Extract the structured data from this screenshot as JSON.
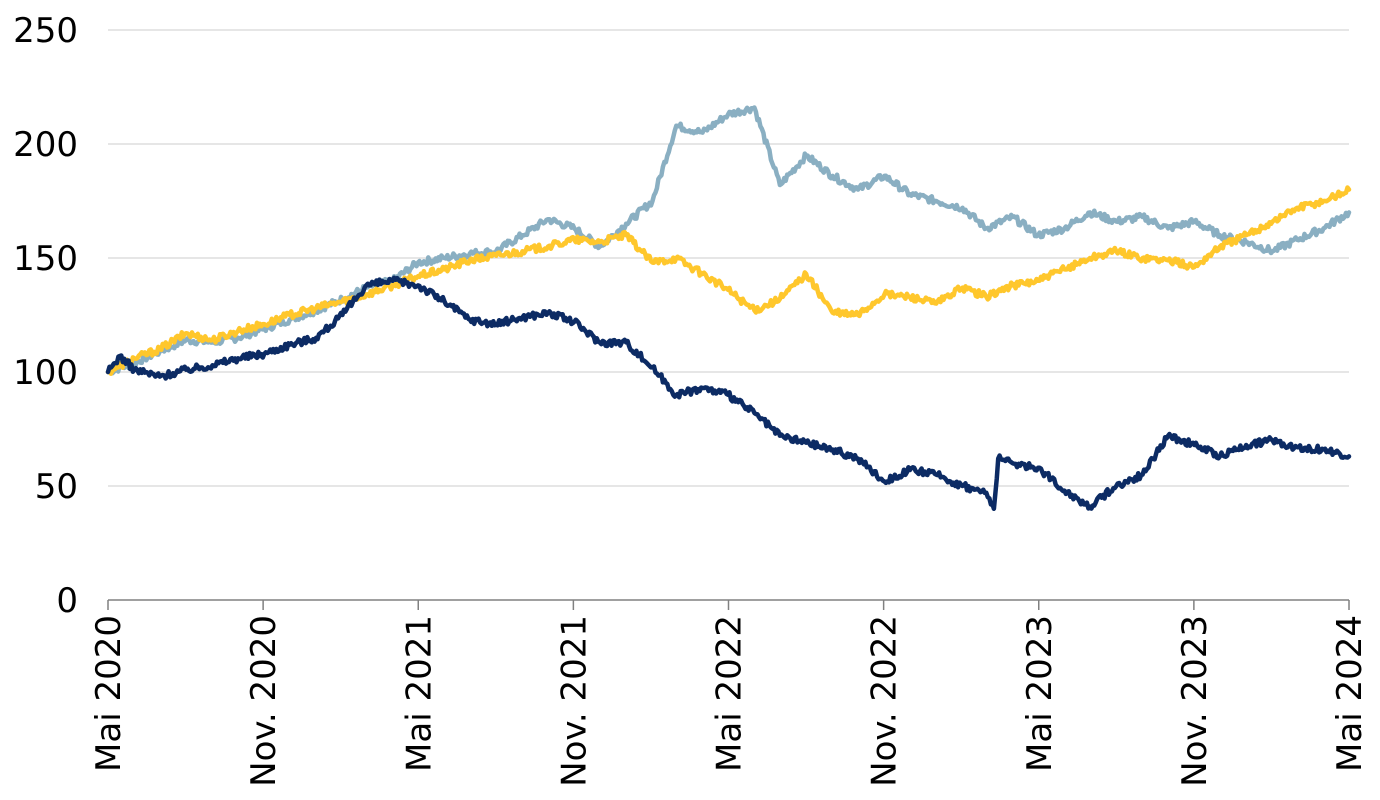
{
  "chart_data": {
    "type": "line",
    "title": "",
    "xlabel": "",
    "ylabel": "",
    "ylim": [
      0,
      250
    ],
    "xlim": [
      "2020-05",
      "2024-05"
    ],
    "yticks": [
      "0",
      "50",
      "100",
      "150",
      "200",
      "250"
    ],
    "xticks": [
      "Mai 2020",
      "Nov. 2020",
      "Mai 2021",
      "Nov. 2021",
      "Mai 2022",
      "Nov. 2022",
      "Mai 2023",
      "Nov. 2023",
      "Mai 2024"
    ],
    "grid": true,
    "legend": "none",
    "series": [
      {
        "color": "#8AAFC2",
        "points": [
          [
            "2020-05-01",
            100
          ],
          [
            "2020-06-01",
            104
          ],
          [
            "2020-07-01",
            109
          ],
          [
            "2020-08-01",
            114
          ],
          [
            "2020-09-01",
            113
          ],
          [
            "2020-10-01",
            115
          ],
          [
            "2020-11-01",
            119
          ],
          [
            "2020-12-01",
            123
          ],
          [
            "2021-01-01",
            127
          ],
          [
            "2021-02-01",
            132
          ],
          [
            "2021-03-01",
            137
          ],
          [
            "2021-04-01",
            140
          ],
          [
            "2021-05-01",
            148
          ],
          [
            "2021-06-01",
            150
          ],
          [
            "2021-07-01",
            152
          ],
          [
            "2021-08-01",
            153
          ],
          [
            "2021-09-01",
            160
          ],
          [
            "2021-10-01",
            167
          ],
          [
            "2021-11-01",
            163
          ],
          [
            "2021-12-01",
            155
          ],
          [
            "2022-01-01",
            165
          ],
          [
            "2022-02-01",
            175
          ],
          [
            "2022-03-01",
            208
          ],
          [
            "2022-04-01",
            205
          ],
          [
            "2022-05-01",
            213
          ],
          [
            "2022-06-01",
            216
          ],
          [
            "2022-07-01",
            182
          ],
          [
            "2022-08-01",
            195
          ],
          [
            "2022-09-01",
            186
          ],
          [
            "2022-10-01",
            180
          ],
          [
            "2022-11-01",
            186
          ],
          [
            "2022-12-01",
            178
          ],
          [
            "2023-01-01",
            175
          ],
          [
            "2023-02-01",
            172
          ],
          [
            "2023-03-01",
            163
          ],
          [
            "2023-04-01",
            168
          ],
          [
            "2023-05-01",
            160
          ],
          [
            "2023-06-01",
            163
          ],
          [
            "2023-07-01",
            170
          ],
          [
            "2023-08-01",
            166
          ],
          [
            "2023-09-01",
            168
          ],
          [
            "2023-10-01",
            163
          ],
          [
            "2023-11-01",
            166
          ],
          [
            "2023-12-01",
            160
          ],
          [
            "2024-01-01",
            157
          ],
          [
            "2024-02-01",
            153
          ],
          [
            "2024-03-01",
            158
          ],
          [
            "2024-04-01",
            163
          ],
          [
            "2024-05-01",
            170
          ]
        ]
      },
      {
        "color": "#FFC72C",
        "points": [
          [
            "2020-05-01",
            100
          ],
          [
            "2020-06-01",
            106
          ],
          [
            "2020-07-01",
            110
          ],
          [
            "2020-08-01",
            117
          ],
          [
            "2020-09-01",
            114
          ],
          [
            "2020-10-01",
            118
          ],
          [
            "2020-11-01",
            121
          ],
          [
            "2020-12-01",
            125
          ],
          [
            "2021-01-01",
            128
          ],
          [
            "2021-02-01",
            131
          ],
          [
            "2021-03-01",
            134
          ],
          [
            "2021-04-01",
            138
          ],
          [
            "2021-05-01",
            142
          ],
          [
            "2021-06-01",
            145
          ],
          [
            "2021-07-01",
            149
          ],
          [
            "2021-08-01",
            151
          ],
          [
            "2021-09-01",
            153
          ],
          [
            "2021-10-01",
            155
          ],
          [
            "2021-11-01",
            158
          ],
          [
            "2021-12-01",
            157
          ],
          [
            "2022-01-01",
            160
          ],
          [
            "2022-02-01",
            148
          ],
          [
            "2022-03-01",
            150
          ],
          [
            "2022-04-01",
            143
          ],
          [
            "2022-05-01",
            136
          ],
          [
            "2022-06-01",
            127
          ],
          [
            "2022-07-01",
            132
          ],
          [
            "2022-08-01",
            143
          ],
          [
            "2022-09-01",
            126
          ],
          [
            "2022-10-01",
            125
          ],
          [
            "2022-11-01",
            134
          ],
          [
            "2022-12-01",
            133
          ],
          [
            "2023-01-01",
            130
          ],
          [
            "2023-02-01",
            137
          ],
          [
            "2023-03-01",
            133
          ],
          [
            "2023-04-01",
            138
          ],
          [
            "2023-05-01",
            140
          ],
          [
            "2023-06-01",
            145
          ],
          [
            "2023-07-01",
            150
          ],
          [
            "2023-08-01",
            153
          ],
          [
            "2023-09-01",
            150
          ],
          [
            "2023-10-01",
            149
          ],
          [
            "2023-11-01",
            146
          ],
          [
            "2023-12-01",
            155
          ],
          [
            "2024-01-01",
            160
          ],
          [
            "2024-02-01",
            166
          ],
          [
            "2024-03-01",
            172
          ],
          [
            "2024-04-01",
            175
          ],
          [
            "2024-05-01",
            180
          ]
        ]
      },
      {
        "color": "#0C2B64",
        "points": [
          [
            "2020-05-01",
            100
          ],
          [
            "2020-05-15",
            107
          ],
          [
            "2020-06-01",
            101
          ],
          [
            "2020-07-01",
            98
          ],
          [
            "2020-08-01",
            101
          ],
          [
            "2020-09-01",
            103
          ],
          [
            "2020-10-01",
            106
          ],
          [
            "2020-11-01",
            108
          ],
          [
            "2020-12-01",
            112
          ],
          [
            "2021-01-01",
            115
          ],
          [
            "2021-02-01",
            125
          ],
          [
            "2021-03-01",
            138
          ],
          [
            "2021-04-01",
            140
          ],
          [
            "2021-05-01",
            138
          ],
          [
            "2021-06-01",
            131
          ],
          [
            "2021-07-01",
            123
          ],
          [
            "2021-08-01",
            121
          ],
          [
            "2021-09-01",
            124
          ],
          [
            "2021-10-01",
            126
          ],
          [
            "2021-11-01",
            122
          ],
          [
            "2021-12-01",
            113
          ],
          [
            "2022-01-01",
            113
          ],
          [
            "2022-02-01",
            102
          ],
          [
            "2022-03-01",
            90
          ],
          [
            "2022-04-01",
            93
          ],
          [
            "2022-05-01",
            90
          ],
          [
            "2022-06-01",
            82
          ],
          [
            "2022-07-01",
            72
          ],
          [
            "2022-08-01",
            69
          ],
          [
            "2022-09-01",
            66
          ],
          [
            "2022-10-01",
            62
          ],
          [
            "2022-11-01",
            52
          ],
          [
            "2022-12-01",
            57
          ],
          [
            "2023-01-01",
            55
          ],
          [
            "2023-02-01",
            50
          ],
          [
            "2023-03-01",
            47
          ],
          [
            "2023-03-10",
            40
          ],
          [
            "2023-03-15",
            62
          ],
          [
            "2023-04-01",
            60
          ],
          [
            "2023-05-01",
            58
          ],
          [
            "2023-06-01",
            48
          ],
          [
            "2023-07-01",
            41
          ],
          [
            "2023-08-01",
            50
          ],
          [
            "2023-09-01",
            55
          ],
          [
            "2023-10-01",
            72
          ],
          [
            "2023-11-01",
            68
          ],
          [
            "2023-12-01",
            63
          ],
          [
            "2024-01-01",
            68
          ],
          [
            "2024-02-01",
            70
          ],
          [
            "2024-03-01",
            67
          ],
          [
            "2024-04-01",
            66
          ],
          [
            "2024-05-01",
            63
          ]
        ]
      }
    ]
  }
}
